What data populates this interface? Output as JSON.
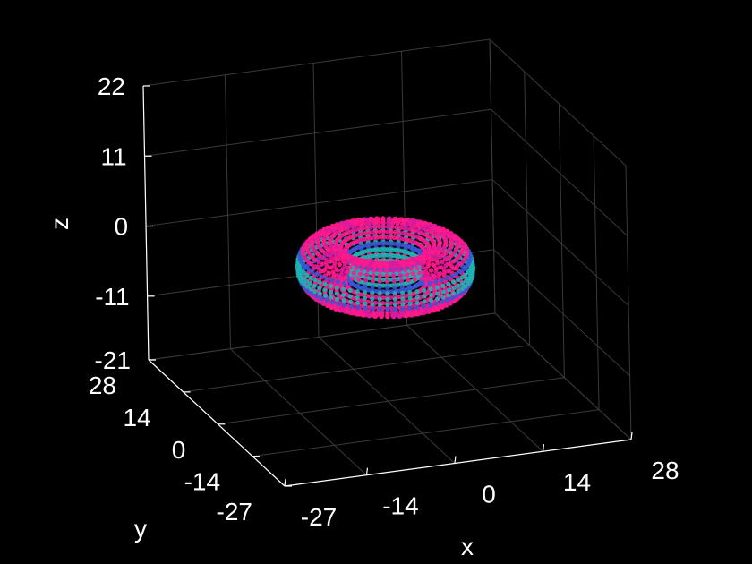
{
  "chart_data": {
    "type": "scatter",
    "title": "",
    "xlabel": "x",
    "ylabel": "y",
    "zlabel": "z",
    "x_ticks": [
      "-27",
      "-14",
      "0",
      "14",
      "28"
    ],
    "y_ticks": [
      "-27",
      "-14",
      "0",
      "14",
      "28"
    ],
    "z_ticks": [
      "-21",
      "-11",
      "0",
      "11",
      "22"
    ],
    "xlim": [
      -27,
      28
    ],
    "ylim": [
      -27,
      28
    ],
    "zlim": [
      -21,
      22
    ],
    "grid": true,
    "background": "#000000",
    "surface": {
      "shape": "torus",
      "center": [
        0,
        0,
        0
      ],
      "major_radius": 9,
      "minor_radius": 4,
      "colors": [
        "#ff1a8c",
        "#e0199c",
        "#3b55d6",
        "#1fb3b3"
      ]
    }
  }
}
